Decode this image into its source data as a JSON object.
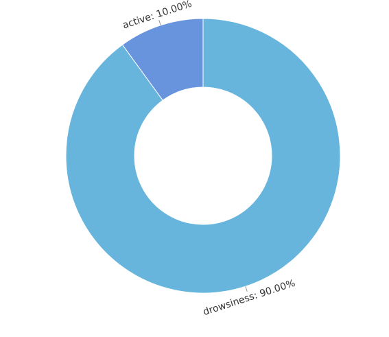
{
  "chart_data": {
    "type": "pie",
    "variant": "donut",
    "title": "",
    "series": [
      {
        "slices": [
          {
            "name": "drowsiness",
            "value": 90.0,
            "label": "drowsiness: 90.00%",
            "color": "#67b5dc"
          },
          {
            "name": "active",
            "value": 10.0,
            "label": "active: 10.00%",
            "color": "#6894dd"
          }
        ]
      }
    ],
    "legend": "none"
  }
}
